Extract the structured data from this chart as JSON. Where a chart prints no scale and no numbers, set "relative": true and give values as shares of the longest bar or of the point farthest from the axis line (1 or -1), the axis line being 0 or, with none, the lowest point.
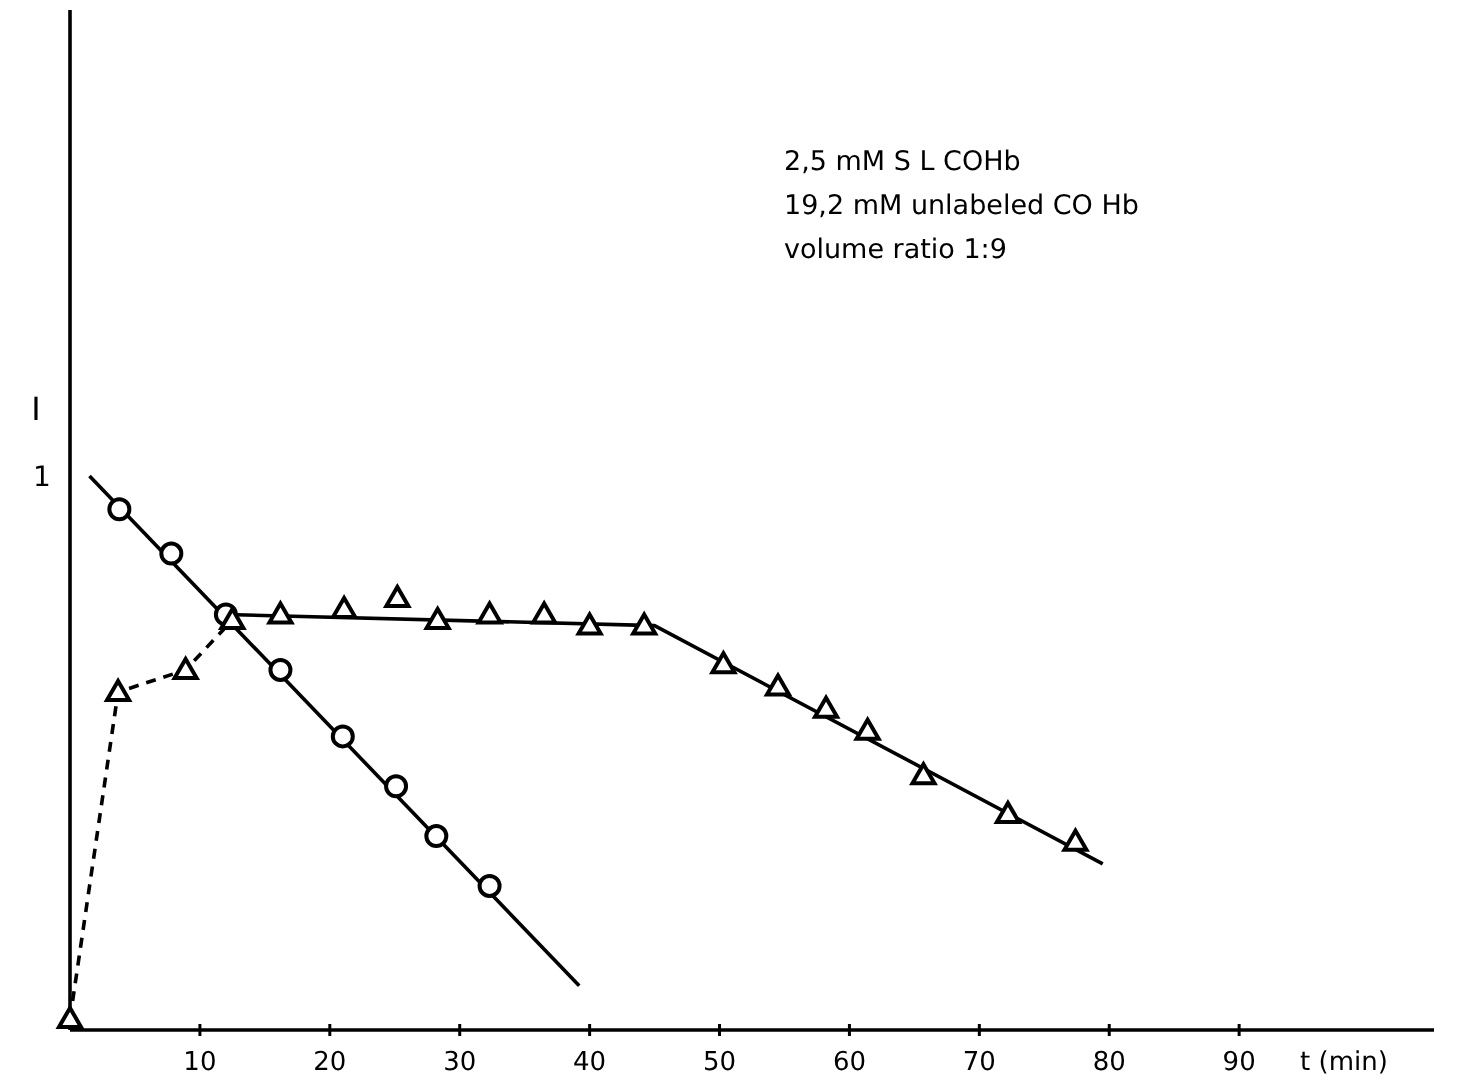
{
  "chart_data": {
    "type": "scatter",
    "relative": true,
    "xlabel": "t (min)",
    "ylabel": "I",
    "xlim": [
      0,
      105
    ],
    "xticks": [
      10,
      20,
      30,
      40,
      50,
      60,
      70,
      80,
      90
    ],
    "grid": false,
    "annotations": [
      "1",
      "2,5 mM  S L COHb",
      "19,2 mM  unlabeled  CO Hb",
      "volume  ratio  1:9"
    ],
    "series": [
      {
        "type": "line",
        "color": "#000000",
        "line_style": "solid",
        "x": [
          1.5,
          39.2
        ],
        "values": [
          1.0,
          0.08
        ]
      },
      {
        "type": "line",
        "color": "#000000",
        "line_style": "dashed",
        "x": [
          0,
          3.7,
          8.9,
          12.5
        ],
        "values": [
          0.02,
          0.61,
          0.65,
          0.74
        ]
      },
      {
        "type": "line",
        "color": "#000000",
        "line_style": "solid",
        "x": [
          12,
          45,
          79.5
        ],
        "values": [
          0.75,
          0.73,
          0.3
        ]
      },
      {
        "marker": "circle",
        "color": "#000000",
        "x": [
          3.8,
          7.8,
          12.0,
          16.2,
          21.0,
          25.1,
          28.2,
          32.3
        ],
        "values": [
          0.94,
          0.86,
          0.75,
          0.65,
          0.53,
          0.44,
          0.35,
          0.26
        ]
      },
      {
        "marker": "triangle",
        "color": "#000000",
        "x": [
          0,
          3.7,
          8.9,
          12.5,
          16.2,
          21.1,
          25.2,
          28.3,
          32.3,
          36.5,
          40,
          44.2,
          50.3,
          54.5,
          58.2,
          61.4,
          65.7,
          72.2,
          77.4
        ],
        "values": [
          0.02,
          0.61,
          0.65,
          0.74,
          0.75,
          0.76,
          0.78,
          0.74,
          0.75,
          0.75,
          0.73,
          0.73,
          0.66,
          0.62,
          0.58,
          0.54,
          0.46,
          0.39,
          0.34
        ]
      }
    ]
  }
}
